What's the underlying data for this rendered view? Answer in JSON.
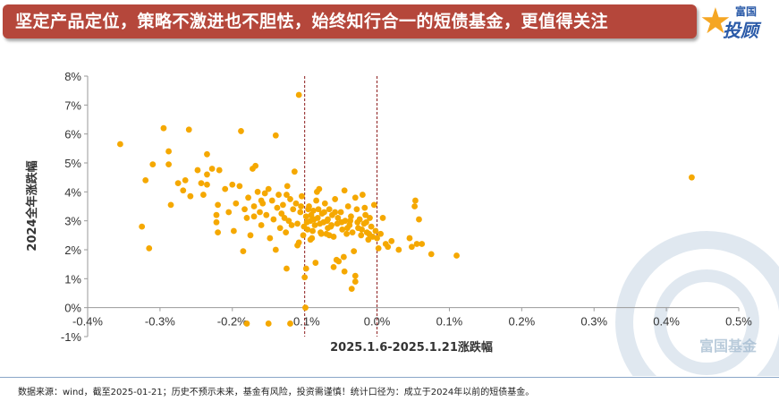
{
  "header": {
    "title": "坚定产品定位，策略不激进也不胆怯，始终知行合一的短债基金，更值得关注"
  },
  "logo": {
    "top_text": "富国",
    "main_text": "投顾",
    "star_glyph": "★"
  },
  "watermark": {
    "text": "富国基金"
  },
  "footer": {
    "note": "数据来源：wind，截至2025-01-21；历史不预示未来，基金有风险，投资需谨慎！统计口径为：成立于2024年以前的短债基金。"
  },
  "colors": {
    "header_bg": "#b5473b",
    "point": "#f5a800",
    "ref_line": "#8b1a1a",
    "axis": "#9a9a9a",
    "text": "#333333"
  },
  "chart_data": {
    "type": "scatter",
    "title": "",
    "xlabel": "2025.1.6-2025.1.21涨跌幅",
    "ylabel": "2024全年涨跌幅",
    "xlim": [
      -0.4,
      0.5
    ],
    "ylim": [
      -1,
      8
    ],
    "x_ticks": [
      "-0.4%",
      "-0.3%",
      "-0.2%",
      "-0.1%",
      "0.0%",
      "0.1%",
      "0.2%",
      "0.3%",
      "0.4%",
      "0.5%"
    ],
    "y_ticks": [
      "-1%",
      "0%",
      "1%",
      "2%",
      "3%",
      "4%",
      "5%",
      "6%",
      "7%",
      "8%"
    ],
    "reference_lines_x": [
      -0.1,
      0.0
    ],
    "grid": false,
    "legend": "none",
    "points": [
      [
        -0.355,
        5.65
      ],
      [
        -0.32,
        4.4
      ],
      [
        -0.325,
        2.8
      ],
      [
        -0.315,
        2.05
      ],
      [
        -0.31,
        4.95
      ],
      [
        -0.295,
        6.2
      ],
      [
        -0.288,
        4.95
      ],
      [
        -0.288,
        5.4
      ],
      [
        -0.285,
        3.55
      ],
      [
        -0.275,
        4.3
      ],
      [
        -0.268,
        4.05
      ],
      [
        -0.265,
        4.4
      ],
      [
        -0.26,
        6.15
      ],
      [
        -0.258,
        3.85
      ],
      [
        -0.248,
        4.75
      ],
      [
        -0.243,
        4.3
      ],
      [
        -0.24,
        3.9
      ],
      [
        -0.235,
        4.25
      ],
      [
        -0.235,
        4.6
      ],
      [
        -0.235,
        5.3
      ],
      [
        -0.228,
        4.8
      ],
      [
        -0.222,
        3.2
      ],
      [
        -0.222,
        2.95
      ],
      [
        -0.22,
        3.55
      ],
      [
        -0.22,
        2.6
      ],
      [
        -0.218,
        4.75
      ],
      [
        -0.21,
        4.1
      ],
      [
        -0.205,
        3.3
      ],
      [
        -0.2,
        4.25
      ],
      [
        -0.198,
        2.65
      ],
      [
        -0.195,
        3.6
      ],
      [
        -0.19,
        4.2
      ],
      [
        -0.188,
        6.1
      ],
      [
        -0.185,
        1.95
      ],
      [
        -0.183,
        3.4
      ],
      [
        -0.18,
        3.1
      ],
      [
        -0.178,
        3.8
      ],
      [
        -0.175,
        2.5
      ],
      [
        -0.172,
        4.8
      ],
      [
        -0.17,
        3.5
      ],
      [
        -0.168,
        4.9
      ],
      [
        -0.165,
        4.0
      ],
      [
        -0.162,
        3.3
      ],
      [
        -0.16,
        2.85
      ],
      [
        -0.158,
        3.6
      ],
      [
        -0.155,
        3.95
      ],
      [
        -0.153,
        3.2
      ],
      [
        -0.15,
        4.1
      ],
      [
        -0.148,
        2.4
      ],
      [
        -0.145,
        3.7
      ],
      [
        -0.143,
        3.05
      ],
      [
        -0.14,
        5.95
      ],
      [
        -0.138,
        3.45
      ],
      [
        -0.136,
        3.9
      ],
      [
        -0.134,
        2.75
      ],
      [
        -0.132,
        3.25
      ],
      [
        -0.13,
        3.55
      ],
      [
        -0.128,
        3.1
      ],
      [
        -0.126,
        2.6
      ],
      [
        -0.124,
        4.2
      ],
      [
        -0.122,
        3.0
      ],
      [
        -0.12,
        3.75
      ],
      [
        -0.118,
        2.85
      ],
      [
        -0.116,
        3.4
      ],
      [
        -0.114,
        4.7
      ],
      [
        -0.112,
        3.6
      ],
      [
        -0.11,
        2.9
      ],
      [
        -0.108,
        7.35
      ],
      [
        -0.106,
        3.3
      ],
      [
        -0.104,
        3.85
      ],
      [
        -0.102,
        2.5
      ],
      [
        -0.1,
        1.05
      ],
      [
        -0.099,
        0.0
      ],
      [
        -0.098,
        3.15
      ],
      [
        -0.096,
        2.7
      ],
      [
        -0.094,
        3.5
      ],
      [
        -0.092,
        3.0
      ],
      [
        -0.09,
        2.4
      ],
      [
        -0.088,
        3.35
      ],
      [
        -0.086,
        2.85
      ],
      [
        -0.084,
        3.7
      ],
      [
        -0.082,
        3.1
      ],
      [
        -0.08,
        4.1
      ],
      [
        -0.078,
        2.6
      ],
      [
        -0.076,
        3.25
      ],
      [
        -0.074,
        2.95
      ],
      [
        -0.072,
        3.6
      ],
      [
        -0.07,
        2.55
      ],
      [
        -0.068,
        3.05
      ],
      [
        -0.066,
        3.4
      ],
      [
        -0.064,
        2.8
      ],
      [
        -0.062,
        3.2
      ],
      [
        -0.06,
        2.45
      ],
      [
        -0.058,
        3.75
      ],
      [
        -0.056,
        1.65
      ],
      [
        -0.055,
        2.9
      ],
      [
        -0.053,
        1.6
      ],
      [
        -0.05,
        3.3
      ],
      [
        -0.048,
        2.7
      ],
      [
        -0.046,
        1.75
      ],
      [
        -0.044,
        3.0
      ],
      [
        -0.042,
        2.55
      ],
      [
        -0.04,
        3.5
      ],
      [
        -0.038,
        2.85
      ],
      [
        -0.036,
        3.15
      ],
      [
        -0.034,
        2.6
      ],
      [
        -0.032,
        1.95
      ],
      [
        -0.03,
        1.1
      ],
      [
        -0.03,
        0.9
      ],
      [
        -0.028,
        3.4
      ],
      [
        -0.026,
        2.75
      ],
      [
        -0.024,
        3.05
      ],
      [
        -0.022,
        2.5
      ],
      [
        -0.02,
        3.9
      ],
      [
        -0.018,
        2.9
      ],
      [
        -0.016,
        3.2
      ],
      [
        -0.014,
        2.6
      ],
      [
        -0.012,
        2.35
      ],
      [
        -0.01,
        3.1
      ],
      [
        -0.008,
        2.8
      ],
      [
        -0.006,
        2.45
      ],
      [
        -0.004,
        3.55
      ],
      [
        -0.002,
        2.65
      ],
      [
        0.0,
        2.4
      ],
      [
        0.002,
        2.05
      ],
      [
        0.005,
        2.55
      ],
      [
        0.008,
        3.1
      ],
      [
        0.012,
        2.2
      ],
      [
        0.015,
        2.1
      ],
      [
        0.02,
        2.3
      ],
      [
        0.03,
        2.0
      ],
      [
        0.045,
        2.4
      ],
      [
        0.048,
        2.1
      ],
      [
        0.052,
        3.5
      ],
      [
        0.053,
        3.7
      ],
      [
        0.055,
        2.2
      ],
      [
        0.058,
        3.05
      ],
      [
        0.062,
        2.2
      ],
      [
        0.075,
        1.85
      ],
      [
        0.11,
        1.8
      ],
      [
        0.435,
        4.5
      ],
      [
        -0.15,
        -0.55
      ],
      [
        -0.12,
        -0.55
      ],
      [
        -0.18,
        -0.55
      ],
      [
        -0.098,
        1.35
      ],
      [
        -0.125,
        1.35
      ],
      [
        -0.085,
        1.55
      ],
      [
        -0.06,
        1.4
      ],
      [
        -0.045,
        1.25
      ],
      [
        -0.035,
        0.65
      ],
      [
        -0.14,
        2.0
      ],
      [
        -0.108,
        2.25
      ],
      [
        -0.092,
        2.35
      ],
      [
        -0.077,
        2.55
      ],
      [
        -0.066,
        2.5
      ],
      [
        -0.16,
        3.7
      ],
      [
        -0.17,
        3.15
      ],
      [
        -0.125,
        3.9
      ],
      [
        -0.11,
        2.15
      ],
      [
        -0.083,
        4.0
      ],
      [
        -0.045,
        4.05
      ],
      [
        -0.03,
        3.8
      ],
      [
        -0.058,
        3.3
      ],
      [
        -0.068,
        2.75
      ],
      [
        -0.017,
        3.45
      ],
      [
        -0.097,
        2.95
      ],
      [
        -0.091,
        3.2
      ],
      [
        -0.087,
        3.05
      ],
      [
        -0.079,
        2.9
      ],
      [
        -0.073,
        3.3
      ],
      [
        -0.069,
        3.0
      ],
      [
        -0.063,
        2.85
      ],
      [
        -0.054,
        3.1
      ],
      [
        -0.049,
        2.95
      ],
      [
        -0.041,
        2.75
      ],
      [
        -0.037,
        3.0
      ],
      [
        -0.027,
        2.95
      ],
      [
        -0.021,
        2.7
      ],
      [
        -0.015,
        2.95
      ],
      [
        -0.011,
        2.55
      ],
      [
        -0.105,
        3.5
      ],
      [
        -0.101,
        2.8
      ],
      [
        -0.095,
        3.4
      ],
      [
        -0.089,
        2.65
      ],
      [
        -0.081,
        3.4
      ]
    ]
  }
}
